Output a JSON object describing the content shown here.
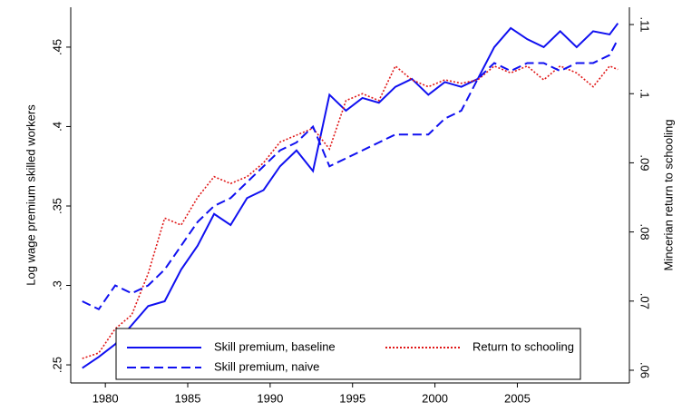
{
  "chart_data": {
    "type": "line",
    "y_label": "Log wage premium skilled workers",
    "y2_label": "Mincerian return to schooling",
    "x": [
      1978.6,
      1979.6,
      1980.6,
      1981.6,
      1982.6,
      1983.6,
      1984.6,
      1985.6,
      1986.6,
      1987.6,
      1988.6,
      1989.6,
      1990.6,
      1991.6,
      1992.6,
      1993.6,
      1994.6,
      1995.6,
      1996.6,
      1997.6,
      1998.6,
      1999.6,
      2000.6,
      2001.6,
      2002.6,
      2003.6,
      2004.6,
      2005.6,
      2006.6,
      2007.6,
      2008.6,
      2009.6,
      2010.6,
      2011.1
    ],
    "series": [
      {
        "name": "Skill premium, baseline",
        "color": "#1010f0",
        "style": "solid",
        "axis": "y",
        "values": [
          0.248,
          0.255,
          0.263,
          0.275,
          0.287,
          0.29,
          0.31,
          0.325,
          0.345,
          0.338,
          0.355,
          0.36,
          0.375,
          0.385,
          0.372,
          0.42,
          0.41,
          0.418,
          0.415,
          0.425,
          0.43,
          0.42,
          0.428,
          0.425,
          0.43,
          0.45,
          0.462,
          0.455,
          0.45,
          0.46,
          0.45,
          0.46,
          0.458,
          0.465
        ]
      },
      {
        "name": "Return to schooling",
        "color": "#e01818",
        "style": "dotted",
        "axis": "y2",
        "values": [
          0.0617,
          0.0625,
          0.066,
          0.068,
          0.074,
          0.082,
          0.081,
          0.085,
          0.088,
          0.087,
          0.088,
          0.09,
          0.093,
          0.094,
          0.095,
          0.092,
          0.099,
          0.1,
          0.099,
          0.104,
          0.102,
          0.101,
          0.102,
          0.1015,
          0.102,
          0.104,
          0.103,
          0.104,
          0.102,
          0.104,
          0.103,
          0.101,
          0.104,
          0.1035
        ]
      },
      {
        "name": "Skill premium, naive",
        "color": "#1010f0",
        "style": "dashed",
        "axis": "y",
        "values": [
          0.29,
          0.285,
          0.3,
          0.295,
          0.3,
          0.31,
          0.325,
          0.34,
          0.35,
          0.355,
          0.365,
          0.375,
          0.385,
          0.39,
          0.4,
          0.375,
          0.38,
          0.385,
          0.39,
          0.395,
          0.395,
          0.395,
          0.405,
          0.41,
          0.43,
          0.44,
          0.435,
          0.44,
          0.44,
          0.435,
          0.44,
          0.44,
          0.445,
          0.455
        ]
      }
    ],
    "xlim": [
      1977.9,
      2011.8
    ],
    "xticks": [
      1980,
      1985,
      1990,
      1995,
      2000,
      2005
    ],
    "ylim": [
      0.2386,
      0.4751
    ],
    "yticks": [
      {
        "value": 0.25,
        "label": ".25"
      },
      {
        "value": 0.3,
        "label": ".3"
      },
      {
        "value": 0.35,
        "label": ".35"
      },
      {
        "value": 0.4,
        "label": ".4"
      },
      {
        "value": 0.45,
        "label": ".45"
      }
    ],
    "y2lim": [
      0.05816,
      0.1125
    ],
    "y2ticks": [
      {
        "value": 0.06,
        "label": ".06"
      },
      {
        "value": 0.07,
        "label": ".07"
      },
      {
        "value": 0.08,
        "label": ".08"
      },
      {
        "value": 0.09,
        "label": ".09"
      },
      {
        "value": 0.1,
        "label": ".1"
      },
      {
        "value": 0.11,
        "label": ".11"
      }
    ],
    "legend": "bottom",
    "grid": false
  }
}
